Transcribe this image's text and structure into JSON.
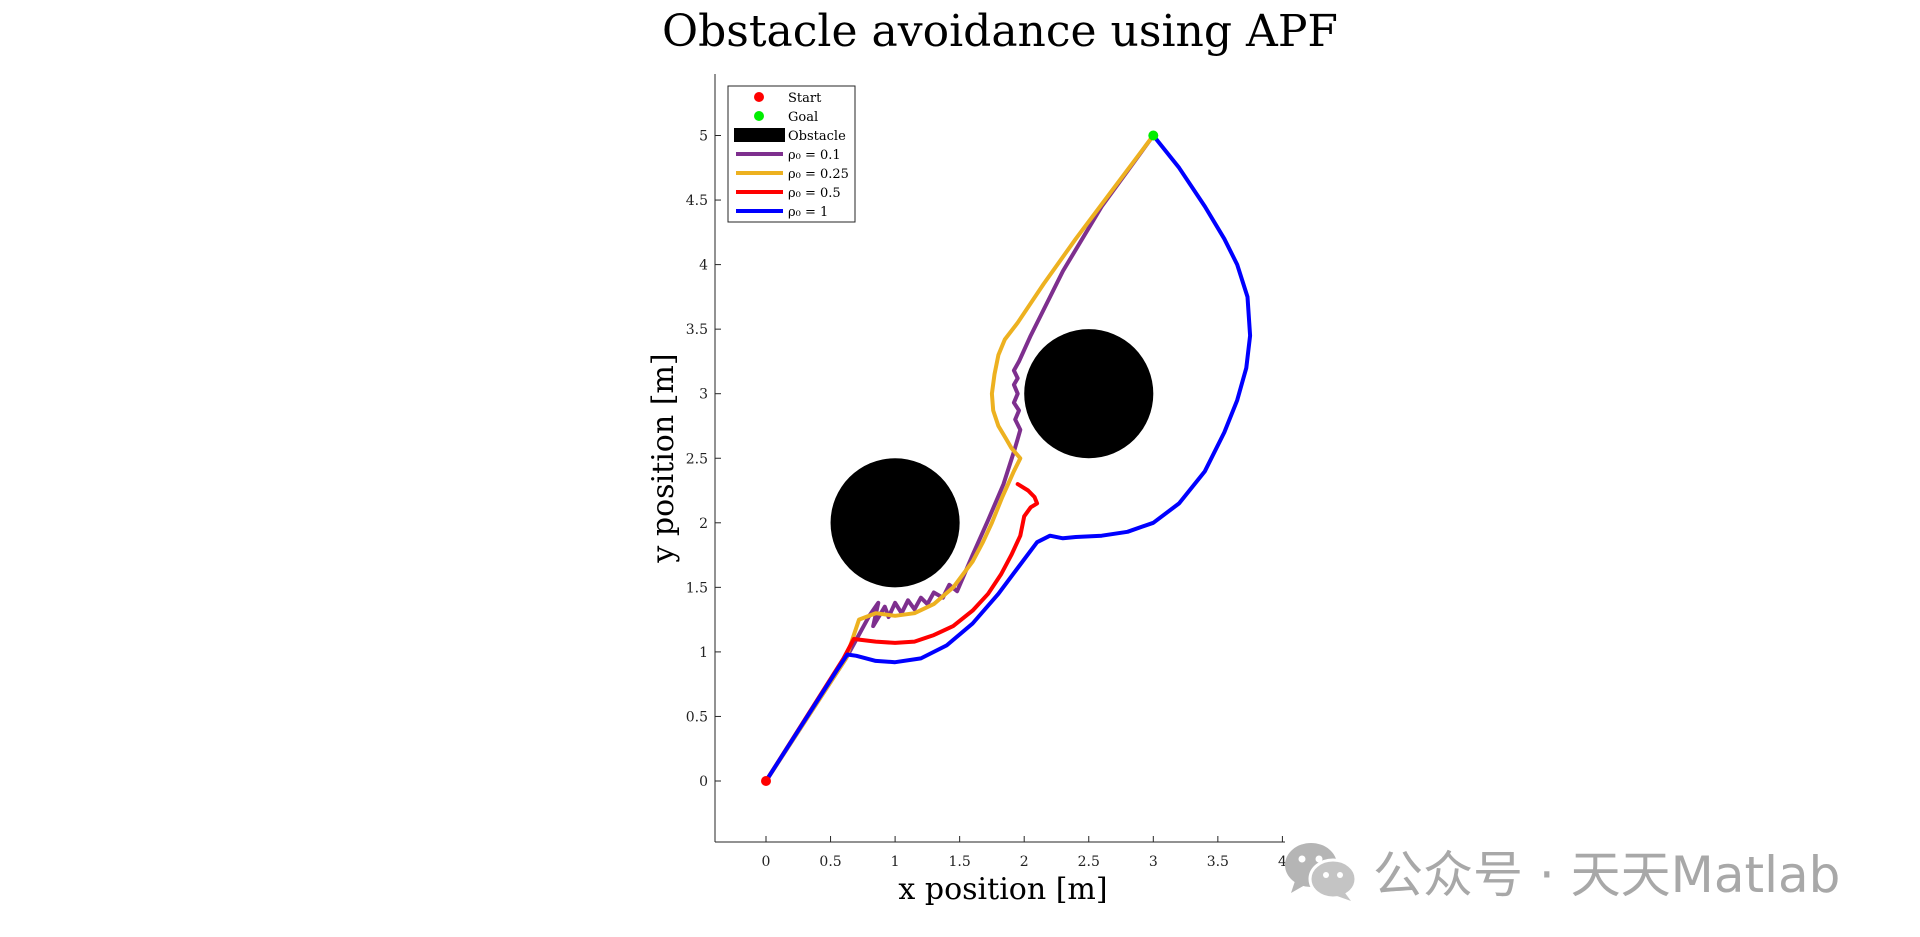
{
  "watermark": {
    "text": "公众号 · 天天Matlab",
    "icon": "wechat-icon"
  },
  "chart_data": {
    "type": "line",
    "title": "Obstacle avoidance using APF",
    "xlabel": "x position [m]",
    "ylabel": "y position [m]",
    "xlim": [
      -0.375,
      4
    ],
    "ylim": [
      -0.5,
      5.5
    ],
    "xticks": [
      "0",
      "0.5",
      "1",
      "1.5",
      "2",
      "2.5",
      "3",
      "3.5",
      "4"
    ],
    "yticks": [
      "0",
      "0.5",
      "1",
      "1.5",
      "2",
      "2.5",
      "3",
      "3.5",
      "4",
      "4.5",
      "5"
    ],
    "grid": false,
    "legend_position": "top-left",
    "start": {
      "name": "Start",
      "x": 0,
      "y": 0,
      "color": "#ff0000"
    },
    "goal": {
      "name": "Goal",
      "x": 3,
      "y": 5,
      "color": "#00ee00"
    },
    "obstacles": {
      "name": "Obstacle",
      "color": "#000000",
      "circles": [
        {
          "cx": 1,
          "cy": 2,
          "r": 0.5
        },
        {
          "cx": 2.5,
          "cy": 3,
          "r": 0.5
        }
      ]
    },
    "series": [
      {
        "name": "ρ₀ = 0.1",
        "color": "#7e2f8e",
        "x": [
          0,
          0.62,
          0.8,
          0.87,
          0.83,
          0.92,
          0.95,
          1.0,
          1.05,
          1.1,
          1.15,
          1.2,
          1.25,
          1.3,
          1.37,
          1.42,
          1.48,
          1.6,
          1.72,
          1.84,
          1.92,
          1.95,
          1.97,
          1.93,
          1.96,
          1.92,
          1.95,
          1.92,
          1.95,
          1.92,
          1.96,
          2.05,
          2.3,
          2.6,
          3
        ],
        "y": [
          0,
          0.95,
          1.28,
          1.38,
          1.2,
          1.35,
          1.27,
          1.38,
          1.3,
          1.4,
          1.33,
          1.42,
          1.37,
          1.46,
          1.42,
          1.52,
          1.47,
          1.75,
          2.02,
          2.3,
          2.55,
          2.65,
          2.72,
          2.8,
          2.87,
          2.93,
          3.0,
          3.07,
          3.12,
          3.18,
          3.25,
          3.45,
          3.95,
          4.45,
          5
        ]
      },
      {
        "name": "ρ₀ = 0.25",
        "color": "#edb120",
        "x": [
          0,
          0.62,
          0.72,
          0.85,
          1.0,
          1.15,
          1.3,
          1.45,
          1.6,
          1.68,
          1.75,
          1.83,
          1.92,
          1.97,
          1.9,
          1.86,
          1.8,
          1.76,
          1.75,
          1.77,
          1.8,
          1.85,
          1.95,
          2.15,
          2.4,
          2.7,
          3
        ],
        "y": [
          0,
          0.95,
          1.25,
          1.3,
          1.28,
          1.3,
          1.37,
          1.5,
          1.7,
          1.85,
          2.0,
          2.2,
          2.4,
          2.5,
          2.58,
          2.65,
          2.75,
          2.87,
          3.0,
          3.15,
          3.3,
          3.42,
          3.55,
          3.85,
          4.2,
          4.6,
          5
        ]
      },
      {
        "name": "ρ₀ = 0.5",
        "color": "#ff0000",
        "x": [
          0,
          0.6,
          0.68,
          0.85,
          1.0,
          1.15,
          1.3,
          1.45,
          1.6,
          1.72,
          1.82,
          1.9,
          1.97,
          2.0,
          2.05,
          2.1,
          2.08,
          2.03,
          1.95
        ],
        "y": [
          0,
          0.95,
          1.1,
          1.08,
          1.07,
          1.08,
          1.13,
          1.2,
          1.32,
          1.45,
          1.6,
          1.75,
          1.9,
          2.05,
          2.12,
          2.15,
          2.2,
          2.25,
          2.3
        ]
      },
      {
        "name": "ρ₀ = 1",
        "color": "#0000ff",
        "x": [
          0,
          0.55,
          0.63,
          0.7,
          0.85,
          1.0,
          1.2,
          1.4,
          1.6,
          1.8,
          1.95,
          2.1,
          2.2,
          2.3,
          2.4,
          2.6,
          2.8,
          3.0,
          3.2,
          3.4,
          3.55,
          3.65,
          3.72,
          3.75,
          3.73,
          3.65,
          3.55,
          3.4,
          3.2,
          3
        ],
        "y": [
          0,
          0.86,
          0.98,
          0.97,
          0.93,
          0.92,
          0.95,
          1.05,
          1.22,
          1.45,
          1.65,
          1.85,
          1.9,
          1.88,
          1.89,
          1.9,
          1.93,
          2.0,
          2.15,
          2.4,
          2.7,
          2.95,
          3.2,
          3.45,
          3.75,
          4.0,
          4.2,
          4.45,
          4.75,
          5
        ]
      }
    ]
  }
}
